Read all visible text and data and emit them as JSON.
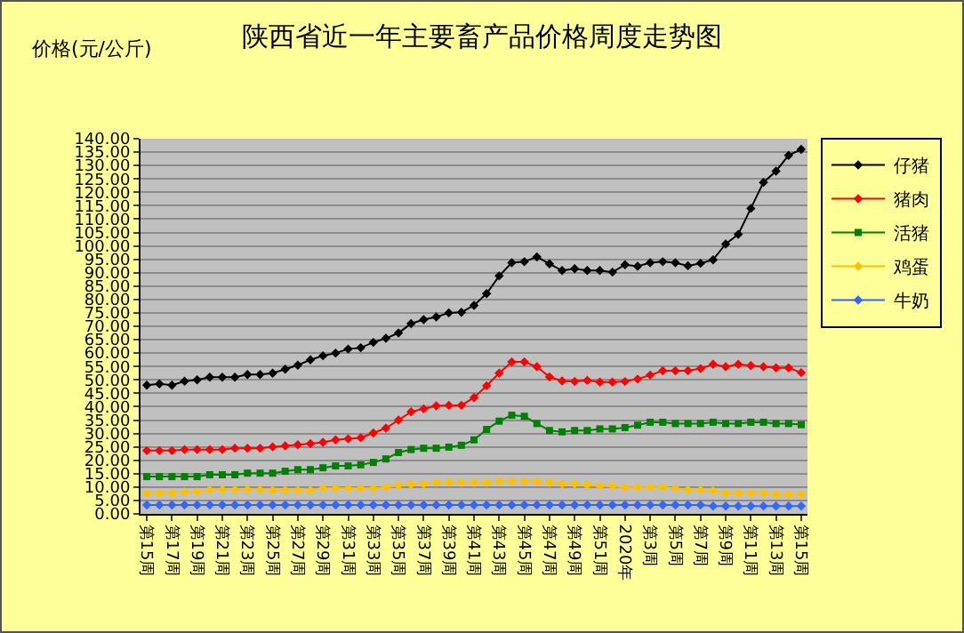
{
  "chart_data": {
    "type": "line",
    "title": "陕西省近一年主要畜产品价格周度走势图",
    "ylabel": "价格(元/公斤)",
    "categories": [
      "第15周",
      null,
      "第17周",
      null,
      "第19周",
      null,
      "第21周",
      null,
      "第23周",
      null,
      "第25周",
      null,
      "第27周",
      null,
      "第29周",
      null,
      "第31周",
      null,
      "第33周",
      null,
      "第35周",
      null,
      "第37周",
      null,
      "第39周",
      null,
      "第41周",
      null,
      "第43周",
      null,
      "第45周",
      null,
      "第47周",
      null,
      "第49周",
      null,
      "第51周",
      null,
      "2020年",
      null,
      "第3周",
      null,
      "第5周",
      null,
      "第7周",
      null,
      "第9周",
      null,
      "第11周",
      null,
      "第13周",
      null,
      "第15周"
    ],
    "series": [
      {
        "name": "仔猪",
        "color": "#000000",
        "marker": "diamond",
        "values": [
          48,
          48.5,
          48,
          49.5,
          50,
          51,
          51,
          51,
          52,
          52,
          52.5,
          54,
          55.5,
          57.5,
          59,
          60,
          61.5,
          62,
          64,
          65.5,
          67.5,
          71,
          72.5,
          73.5,
          75,
          75.2,
          77.8,
          82.2,
          88.8,
          93.7,
          94.1,
          95.9,
          93.3,
          90.8,
          91.5,
          90.8,
          90.8,
          90.2,
          93,
          92.4,
          93.7,
          94.1,
          93.7,
          92.6,
          93.5,
          94.8,
          100.7,
          104.3,
          114,
          123.7,
          127.9,
          133.8,
          136
        ]
      },
      {
        "name": "猪肉",
        "color": "#ff0000",
        "marker": "diamond",
        "values": [
          23.6,
          23.6,
          23.6,
          24,
          24,
          24,
          24,
          24.5,
          24.5,
          24.5,
          25,
          25.4,
          25.8,
          26.2,
          26.7,
          27.6,
          28,
          28.4,
          30.2,
          32,
          35,
          38.1,
          39.2,
          40.3,
          40.5,
          40.5,
          43.4,
          47.8,
          52.5,
          56.7,
          56.7,
          54.9,
          51.1,
          49.6,
          49.4,
          49.8,
          49.2,
          49.2,
          49.4,
          50.3,
          51.8,
          53.4,
          53.4,
          53.4,
          54.2,
          55.8,
          54.9,
          55.8,
          55.3,
          54.9,
          54.5,
          54.5,
          52.7
        ]
      },
      {
        "name": "活猪",
        "color": "#008000",
        "marker": "square",
        "values": [
          13.9,
          13.9,
          13.9,
          13.9,
          13.9,
          14.6,
          14.6,
          14.6,
          15.2,
          15.2,
          15.2,
          15.9,
          16.5,
          16.5,
          17.2,
          17.9,
          17.9,
          18.3,
          19.2,
          20.5,
          22.9,
          24,
          24.5,
          24.5,
          24.9,
          25.6,
          27.6,
          31.5,
          34.6,
          36.8,
          36.4,
          33.7,
          31.1,
          30.6,
          31.1,
          31.1,
          31.7,
          31.7,
          32.2,
          33.1,
          34.2,
          34.2,
          33.7,
          33.7,
          33.7,
          34.2,
          33.7,
          33.7,
          34.2,
          34.2,
          33.7,
          33.7,
          33.3
        ]
      },
      {
        "name": "鸡蛋",
        "color": "#ffc000",
        "marker": "diamond",
        "values": [
          7.7,
          7.7,
          7.7,
          8.2,
          8.2,
          9,
          9,
          9,
          9,
          9,
          8.8,
          8.8,
          8.8,
          8.8,
          9.5,
          9.5,
          9.5,
          9.5,
          9.5,
          9.9,
          10.6,
          11,
          11.2,
          11.7,
          11.9,
          11.7,
          11.7,
          11.7,
          12.1,
          12.1,
          12.1,
          12.1,
          11.7,
          11.2,
          11.2,
          10.8,
          10.4,
          10.4,
          9.9,
          9.9,
          9.9,
          9.9,
          9.5,
          9,
          9,
          8.6,
          7.7,
          7.7,
          7.7,
          7.7,
          7.3,
          7.3,
          7.3
        ]
      },
      {
        "name": "牛奶",
        "color": "#3366ff",
        "marker": "diamond",
        "values": [
          3.3,
          3.3,
          3.3,
          3.3,
          3.3,
          3.3,
          3.3,
          3.3,
          3.3,
          3.3,
          3.3,
          3.3,
          3.3,
          3.3,
          3.3,
          3.3,
          3.3,
          3.3,
          3.3,
          3.3,
          3.3,
          3.3,
          3.3,
          3.3,
          3.3,
          3.3,
          3.3,
          3.3,
          3.3,
          3.3,
          3.3,
          3.3,
          3.3,
          3.3,
          3.3,
          3.3,
          3.3,
          3.3,
          3.3,
          3.3,
          3.3,
          3.3,
          3.3,
          3.3,
          3.3,
          2.9,
          2.9,
          2.9,
          2.9,
          2.9,
          2.9,
          2.9,
          2.9
        ]
      }
    ],
    "ylim": [
      0,
      140
    ],
    "yticks": [
      {
        "value": 0,
        "label": "0.00"
      },
      {
        "value": 5,
        "label": "5.00"
      },
      {
        "value": 10,
        "label": "10.00"
      },
      {
        "value": 15,
        "label": "15.00"
      },
      {
        "value": 20,
        "label": "20.00"
      },
      {
        "value": 25,
        "label": "25.00"
      },
      {
        "value": 30,
        "label": "30.00"
      },
      {
        "value": 35,
        "label": "35.00"
      },
      {
        "value": 40,
        "label": "40.00"
      },
      {
        "value": 45,
        "label": "45.00"
      },
      {
        "value": 50,
        "label": "50.00"
      },
      {
        "value": 55,
        "label": "55.00"
      },
      {
        "value": 60,
        "label": "60.00"
      },
      {
        "value": 65,
        "label": "65.00"
      },
      {
        "value": 70,
        "label": "70.00"
      },
      {
        "value": 75,
        "label": "75.00"
      },
      {
        "value": 80,
        "label": "80.00"
      },
      {
        "value": 85,
        "label": "85.00"
      },
      {
        "value": 90,
        "label": "90.00"
      },
      {
        "value": 95,
        "label": "95.00"
      },
      {
        "value": 100,
        "label": "100.00"
      },
      {
        "value": 105,
        "label": "105.00"
      },
      {
        "value": 110,
        "label": "110.00"
      },
      {
        "value": 115,
        "label": "115.00"
      },
      {
        "value": 120,
        "label": "120.00"
      },
      {
        "value": 125,
        "label": "125.00"
      },
      {
        "value": 130,
        "label": "130.00"
      },
      {
        "value": 135,
        "label": "135.00"
      },
      {
        "value": 140,
        "label": "140.00"
      }
    ],
    "grid": "y",
    "legend": "right"
  }
}
